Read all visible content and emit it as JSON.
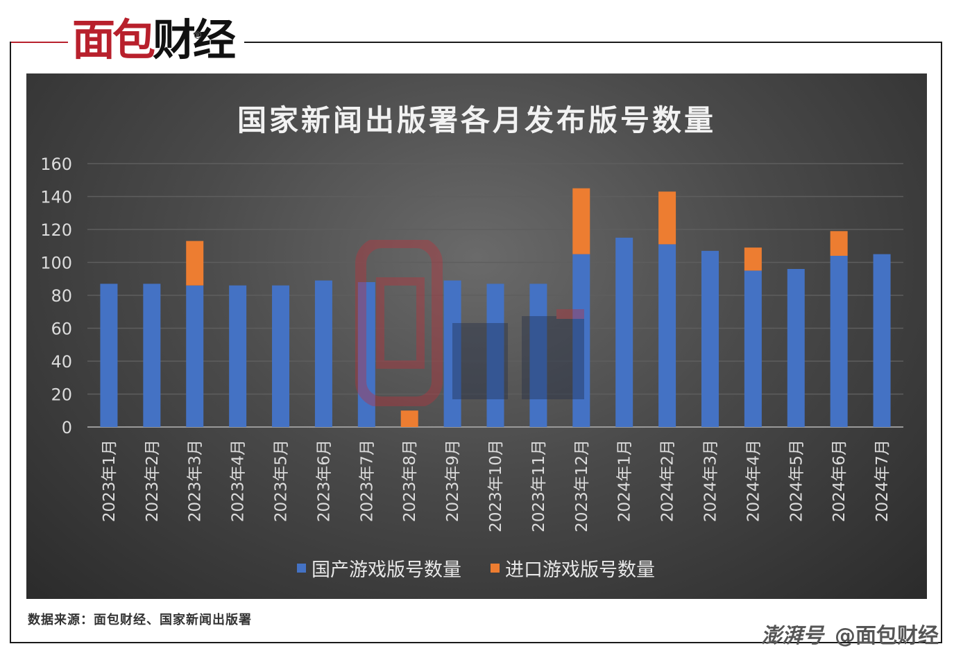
{
  "brand": {
    "logo_red": "面包",
    "logo_dark": "财经",
    "registered": "®"
  },
  "chart_data": {
    "type": "bar",
    "stacked": true,
    "title": "国家新闻出版署各月发布版号数量",
    "categories": [
      "2023年1月",
      "2023年2月",
      "2023年3月",
      "2023年4月",
      "2023年5月",
      "2023年6月",
      "2023年7月",
      "2023年8月",
      "2023年9月",
      "2023年10月",
      "2023年11月",
      "2023年12月",
      "2024年1月",
      "2024年2月",
      "2024年3月",
      "2024年4月",
      "2024年5月",
      "2024年6月",
      "2024年7月"
    ],
    "series": [
      {
        "name": "国产游戏版号数量",
        "color": "#4472c4",
        "values": [
          87,
          87,
          86,
          86,
          86,
          89,
          88,
          0,
          89,
          87,
          87,
          105,
          115,
          111,
          107,
          95,
          96,
          104,
          105
        ]
      },
      {
        "name": "进口游戏版号数量",
        "color": "#ed7d31",
        "values": [
          0,
          0,
          27,
          0,
          0,
          0,
          0,
          10,
          0,
          0,
          0,
          40,
          0,
          32,
          0,
          14,
          0,
          15,
          0
        ]
      }
    ],
    "ylim": [
      0,
      160
    ],
    "yticks": [
      0,
      20,
      40,
      60,
      80,
      100,
      120,
      140,
      160
    ],
    "grid": true,
    "legend_position": "bottom"
  },
  "source_text": "数据来源：面包财经、国家新闻出版署",
  "footer": {
    "platform": "澎湃号",
    "account": "@面包财经"
  }
}
